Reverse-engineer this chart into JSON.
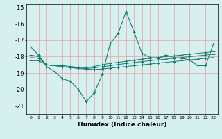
{
  "title": "",
  "xlabel": "Humidex (Indice chaleur)",
  "bg_color": "#d6f0f0",
  "grid_color": "#e8a0a0",
  "line_color": "#1a7a6e",
  "xlim": [
    -0.5,
    23.5
  ],
  "ylim": [
    -21.5,
    -14.8
  ],
  "yticks": [
    -21,
    -20,
    -19,
    -18,
    -17,
    -16,
    -15
  ],
  "xtick_labels": [
    "0",
    "1",
    "2",
    "3",
    "4",
    "5",
    "6",
    "7",
    "8",
    "9",
    "10",
    "11",
    "12",
    "13",
    "14",
    "15",
    "16",
    "17",
    "18",
    "19",
    "20",
    "21",
    "22",
    "23"
  ],
  "main_line_y": [
    -17.4,
    -17.9,
    -18.6,
    -18.9,
    -19.35,
    -19.5,
    -20.0,
    -20.75,
    -20.2,
    -19.1,
    -17.2,
    -16.6,
    -15.25,
    -16.5,
    -17.8,
    -18.05,
    -18.1,
    -17.9,
    -18.05,
    -18.1,
    -18.2,
    -18.55,
    -18.55,
    -17.2
  ],
  "line2_y": [
    -17.9,
    -18.0,
    -18.5,
    -18.55,
    -18.55,
    -18.6,
    -18.65,
    -18.68,
    -18.6,
    -18.5,
    -18.4,
    -18.35,
    -18.28,
    -18.22,
    -18.15,
    -18.1,
    -18.05,
    -18.0,
    -17.95,
    -17.9,
    -17.85,
    -17.8,
    -17.75,
    -17.7
  ],
  "line3_y": [
    -18.05,
    -18.1,
    -18.5,
    -18.55,
    -18.6,
    -18.65,
    -18.7,
    -18.72,
    -18.68,
    -18.62,
    -18.55,
    -18.48,
    -18.42,
    -18.36,
    -18.3,
    -18.25,
    -18.2,
    -18.15,
    -18.1,
    -18.05,
    -18.0,
    -17.95,
    -17.9,
    -17.85
  ],
  "line4_y": [
    -18.25,
    -18.25,
    -18.5,
    -18.55,
    -18.62,
    -18.67,
    -18.72,
    -18.76,
    -18.78,
    -18.75,
    -18.7,
    -18.65,
    -18.6,
    -18.55,
    -18.5,
    -18.45,
    -18.4,
    -18.35,
    -18.3,
    -18.25,
    -18.2,
    -18.15,
    -18.1,
    -18.05
  ]
}
